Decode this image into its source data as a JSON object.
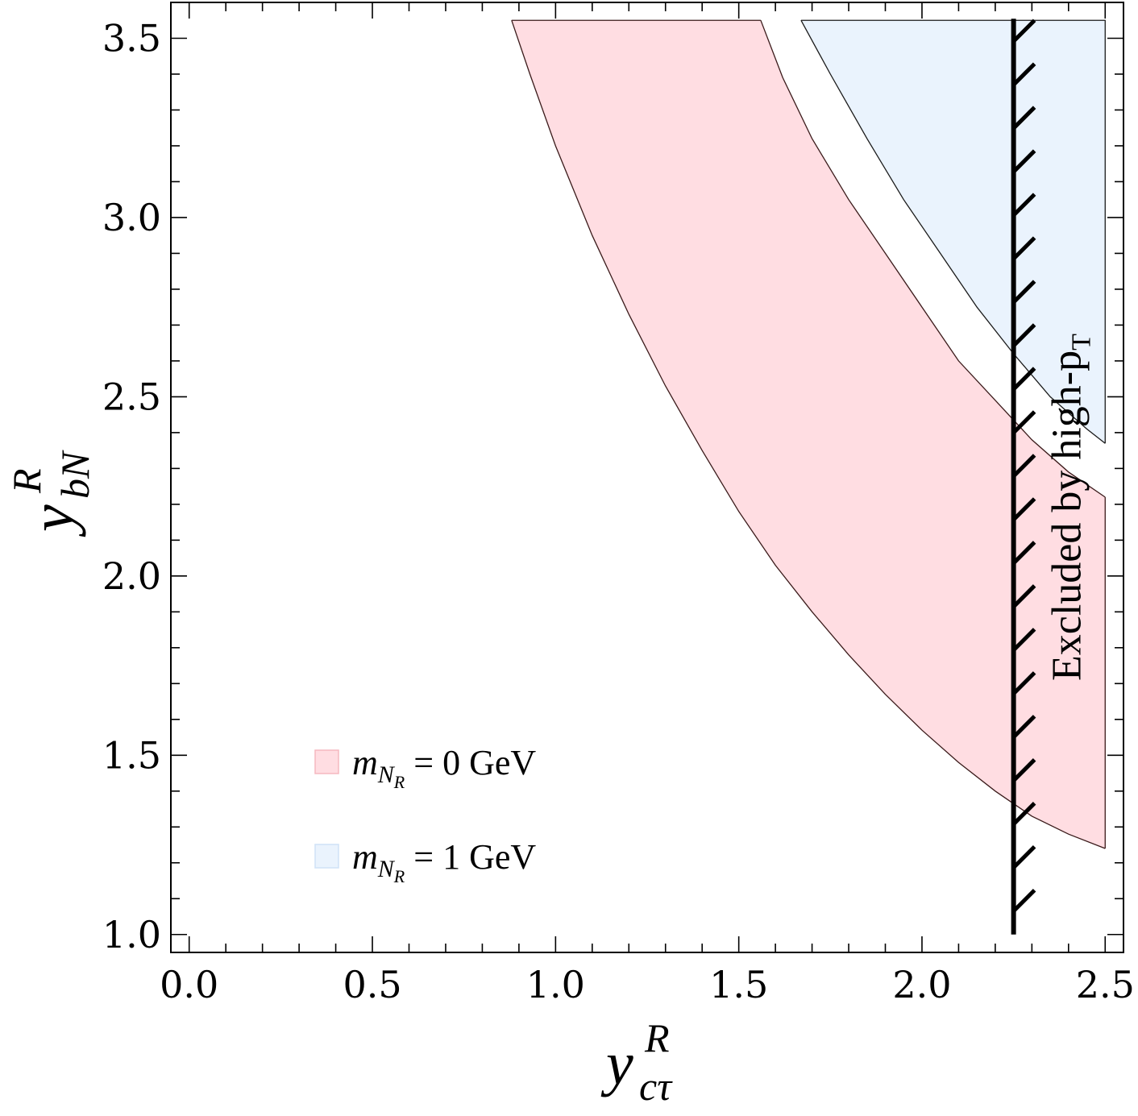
{
  "chart_data": {
    "type": "area",
    "xlabel": {
      "base": "y",
      "sup": "R",
      "sub": "cτ"
    },
    "ylabel": {
      "base": "y",
      "sup": "R",
      "sub": "bN"
    },
    "xlim": [
      -0.05,
      2.55
    ],
    "ylim": [
      0.95,
      3.6
    ],
    "xticks": [
      0.0,
      0.5,
      1.0,
      1.5,
      2.0,
      2.5
    ],
    "xtick_labels": [
      "0.0",
      "0.5",
      "1.0",
      "1.5",
      "2.0",
      "2.5"
    ],
    "yticks": [
      1.0,
      1.5,
      2.0,
      2.5,
      3.0,
      3.5
    ],
    "ytick_labels": [
      "1.0",
      "1.5",
      "2.0",
      "2.5",
      "3.0",
      "3.5"
    ],
    "grid": false,
    "legend_position": "lower-left",
    "series": [
      {
        "name": "m_{N_R} = 0 GeV",
        "legend": {
          "var": "m",
          "sub": "N",
          "subsub": "R",
          "rest": " = 0 GeV"
        },
        "color": "#ffdde2",
        "stroke": "#3a1a1a",
        "lower": [
          [
            0.88,
            3.55
          ],
          [
            0.93,
            3.4
          ],
          [
            1.0,
            3.2
          ],
          [
            1.1,
            2.95
          ],
          [
            1.2,
            2.73
          ],
          [
            1.3,
            2.53
          ],
          [
            1.4,
            2.35
          ],
          [
            1.5,
            2.18
          ],
          [
            1.6,
            2.03
          ],
          [
            1.7,
            1.9
          ],
          [
            1.8,
            1.78
          ],
          [
            1.9,
            1.67
          ],
          [
            2.0,
            1.57
          ],
          [
            2.1,
            1.48
          ],
          [
            2.2,
            1.4
          ],
          [
            2.3,
            1.33
          ],
          [
            2.4,
            1.28
          ],
          [
            2.5,
            1.24
          ]
        ],
        "upper": [
          [
            1.56,
            3.55
          ],
          [
            1.62,
            3.39
          ],
          [
            1.7,
            3.22
          ],
          [
            1.8,
            3.05
          ],
          [
            1.9,
            2.9
          ],
          [
            2.0,
            2.75
          ],
          [
            2.1,
            2.6
          ],
          [
            2.2,
            2.49
          ],
          [
            2.3,
            2.38
          ],
          [
            2.4,
            2.29
          ],
          [
            2.5,
            2.22
          ]
        ]
      },
      {
        "name": "m_{N_R} = 1 GeV",
        "legend": {
          "var": "m",
          "sub": "N",
          "subsub": "R",
          "rest": " = 1 GeV"
        },
        "color": "#eaf3fd",
        "stroke": "#1a1a1a",
        "lower": [
          [
            1.67,
            3.55
          ],
          [
            1.75,
            3.4
          ],
          [
            1.85,
            3.22
          ],
          [
            1.95,
            3.05
          ],
          [
            2.05,
            2.9
          ],
          [
            2.15,
            2.75
          ],
          [
            2.25,
            2.62
          ],
          [
            2.35,
            2.5
          ],
          [
            2.45,
            2.41
          ],
          [
            2.5,
            2.37
          ]
        ],
        "upper": [
          [
            2.5,
            3.55
          ]
        ]
      }
    ],
    "exclusion": {
      "x": 2.25,
      "y_range": [
        1.0,
        3.55
      ],
      "label": "Excluded by high-p",
      "label_sub": "T",
      "hatch_count": 21
    }
  }
}
